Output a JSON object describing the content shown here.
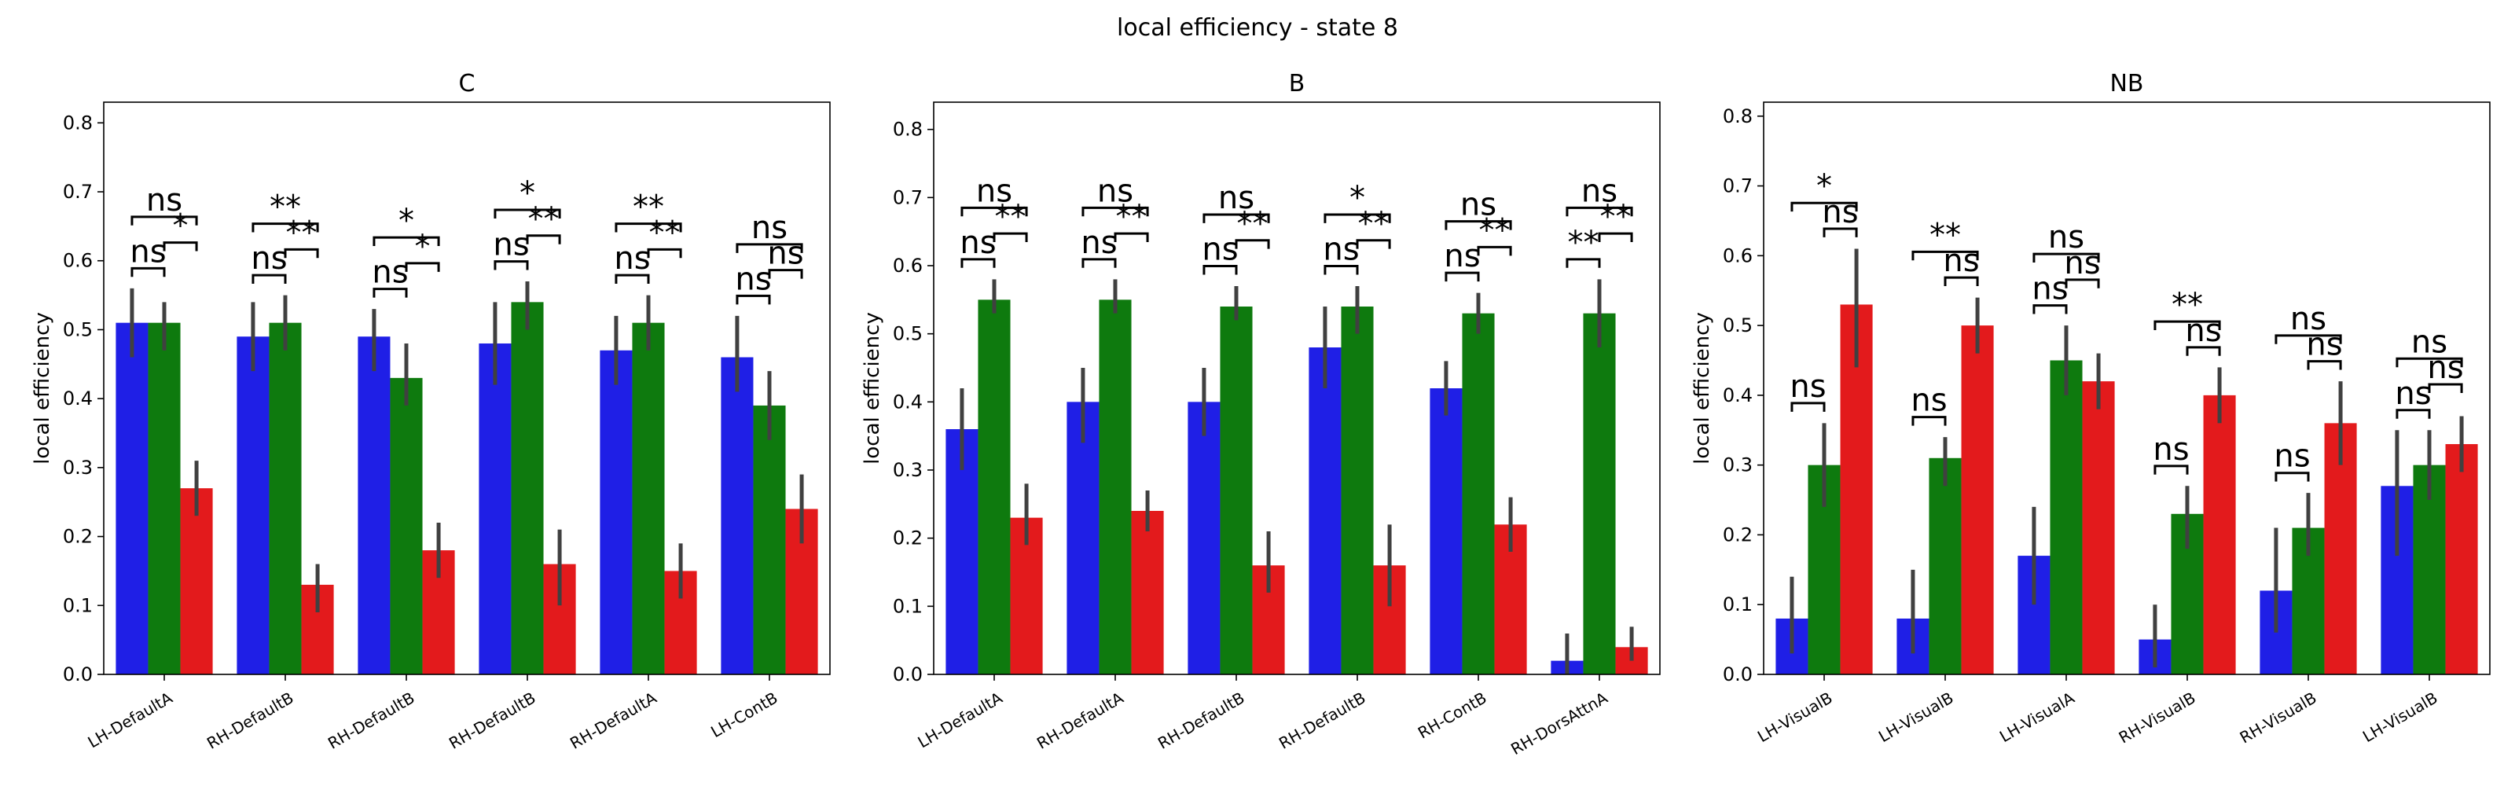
{
  "figure": {
    "title": "local efficiency - state 8"
  },
  "colors": {
    "series": [
      "#1f1fe6",
      "#0e7a0e",
      "#e31a1c"
    ],
    "error_bar": "#404040",
    "bracket": "#000000"
  },
  "chart_data": [
    {
      "type": "bar",
      "title": "C",
      "ylabel": "local efficiency",
      "ylim": [
        0,
        0.83
      ],
      "yticks": [
        0.0,
        0.1,
        0.2,
        0.3,
        0.4,
        0.5,
        0.6,
        0.7,
        0.8
      ],
      "categories": [
        "LH-DefaultA",
        "RH-DefaultB",
        "RH-DefaultB",
        "RH-DefaultB",
        "RH-DefaultA",
        "LH-ContB"
      ],
      "series": [
        {
          "values": [
            0.51,
            0.49,
            0.49,
            0.48,
            0.47,
            0.46
          ],
          "ci": [
            [
              0.46,
              0.56
            ],
            [
              0.44,
              0.54
            ],
            [
              0.44,
              0.53
            ],
            [
              0.42,
              0.54
            ],
            [
              0.42,
              0.52
            ],
            [
              0.41,
              0.52
            ]
          ]
        },
        {
          "values": [
            0.51,
            0.51,
            0.43,
            0.54,
            0.51,
            0.39
          ],
          "ci": [
            [
              0.47,
              0.54
            ],
            [
              0.47,
              0.55
            ],
            [
              0.39,
              0.48
            ],
            [
              0.5,
              0.57
            ],
            [
              0.47,
              0.55
            ],
            [
              0.34,
              0.44
            ]
          ]
        },
        {
          "values": [
            0.27,
            0.13,
            0.18,
            0.16,
            0.15,
            0.24
          ],
          "ci": [
            [
              0.23,
              0.31
            ],
            [
              0.09,
              0.16
            ],
            [
              0.14,
              0.22
            ],
            [
              0.1,
              0.21
            ],
            [
              0.11,
              0.19
            ],
            [
              0.19,
              0.29
            ]
          ]
        }
      ],
      "annotations": [
        [
          "ns",
          "*",
          "ns"
        ],
        [
          "ns",
          "**",
          "**"
        ],
        [
          "ns",
          "*",
          "*"
        ],
        [
          "ns",
          "**",
          "*"
        ],
        [
          "ns",
          "**",
          "**"
        ],
        [
          "ns",
          "ns",
          "ns"
        ]
      ]
    },
    {
      "type": "bar",
      "title": "B",
      "ylabel": "local efficiency",
      "ylim": [
        0,
        0.84
      ],
      "yticks": [
        0.0,
        0.1,
        0.2,
        0.3,
        0.4,
        0.5,
        0.6,
        0.7,
        0.8
      ],
      "categories": [
        "LH-DefaultA",
        "RH-DefaultA",
        "RH-DefaultB",
        "RH-DefaultB",
        "RH-ContB",
        "RH-DorsAttnA"
      ],
      "series": [
        {
          "values": [
            0.36,
            0.4,
            0.4,
            0.48,
            0.42,
            0.02
          ],
          "ci": [
            [
              0.3,
              0.42
            ],
            [
              0.34,
              0.45
            ],
            [
              0.35,
              0.45
            ],
            [
              0.42,
              0.54
            ],
            [
              0.38,
              0.46
            ],
            [
              0.0,
              0.06
            ]
          ]
        },
        {
          "values": [
            0.55,
            0.55,
            0.54,
            0.54,
            0.53,
            0.53
          ],
          "ci": [
            [
              0.53,
              0.58
            ],
            [
              0.53,
              0.58
            ],
            [
              0.52,
              0.57
            ],
            [
              0.5,
              0.57
            ],
            [
              0.5,
              0.56
            ],
            [
              0.48,
              0.58
            ]
          ]
        },
        {
          "values": [
            0.23,
            0.24,
            0.16,
            0.16,
            0.22,
            0.04
          ],
          "ci": [
            [
              0.19,
              0.28
            ],
            [
              0.21,
              0.27
            ],
            [
              0.12,
              0.21
            ],
            [
              0.1,
              0.22
            ],
            [
              0.18,
              0.26
            ],
            [
              0.02,
              0.07
            ]
          ]
        }
      ],
      "annotations": [
        [
          "ns",
          "**",
          "ns"
        ],
        [
          "ns",
          "**",
          "ns"
        ],
        [
          "ns",
          "**",
          "ns"
        ],
        [
          "ns",
          "**",
          "*"
        ],
        [
          "ns",
          "**",
          "ns"
        ],
        [
          "**",
          "**",
          "ns"
        ]
      ]
    },
    {
      "type": "bar",
      "title": "NB",
      "ylabel": "local efficiency",
      "ylim": [
        0,
        0.82
      ],
      "yticks": [
        0.0,
        0.1,
        0.2,
        0.3,
        0.4,
        0.5,
        0.6,
        0.7,
        0.8
      ],
      "categories": [
        "LH-VisualB",
        "LH-VisualB",
        "LH-VisualA",
        "RH-VisualB",
        "RH-VisualB",
        "LH-VisualB"
      ],
      "series": [
        {
          "values": [
            0.08,
            0.08,
            0.17,
            0.05,
            0.12,
            0.27
          ],
          "ci": [
            [
              0.03,
              0.14
            ],
            [
              0.03,
              0.15
            ],
            [
              0.1,
              0.24
            ],
            [
              0.01,
              0.1
            ],
            [
              0.06,
              0.21
            ],
            [
              0.17,
              0.35
            ]
          ]
        },
        {
          "values": [
            0.3,
            0.31,
            0.45,
            0.23,
            0.21,
            0.3
          ],
          "ci": [
            [
              0.24,
              0.36
            ],
            [
              0.27,
              0.34
            ],
            [
              0.4,
              0.5
            ],
            [
              0.18,
              0.27
            ],
            [
              0.17,
              0.26
            ],
            [
              0.25,
              0.35
            ]
          ]
        },
        {
          "values": [
            0.53,
            0.5,
            0.42,
            0.4,
            0.36,
            0.33
          ],
          "ci": [
            [
              0.44,
              0.61
            ],
            [
              0.46,
              0.54
            ],
            [
              0.38,
              0.46
            ],
            [
              0.36,
              0.44
            ],
            [
              0.3,
              0.42
            ],
            [
              0.29,
              0.37
            ]
          ]
        }
      ],
      "annotations": [
        [
          "ns",
          "ns",
          "*"
        ],
        [
          "ns",
          "ns",
          "**"
        ],
        [
          "ns",
          "ns",
          "ns"
        ],
        [
          "ns",
          "ns",
          "**"
        ],
        [
          "ns",
          "ns",
          "ns"
        ],
        [
          "ns",
          "ns",
          "ns"
        ]
      ]
    }
  ]
}
